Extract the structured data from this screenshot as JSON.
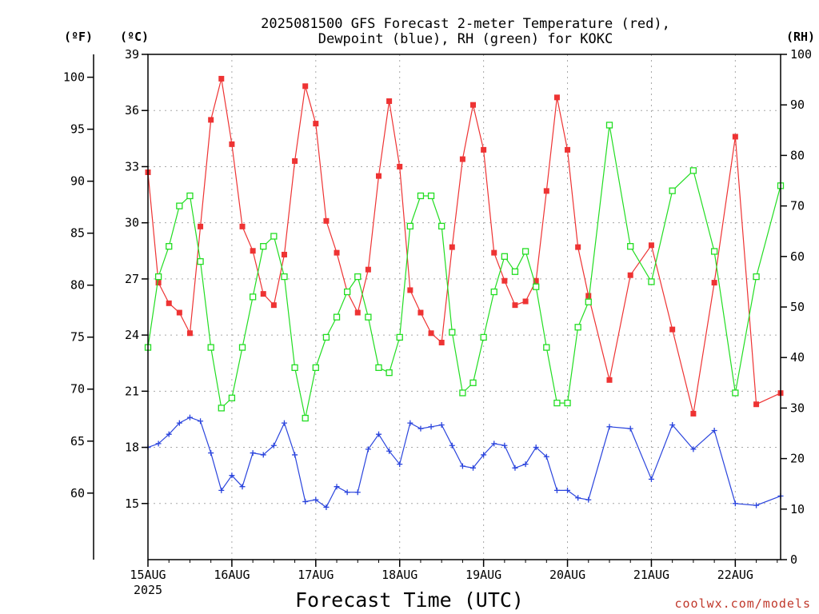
{
  "chart_data": {
    "type": "line",
    "title": [
      "2025081500 GFS Forecast 2-meter Temperature (red),",
      "Dewpoint (blue), RH (green) for KOKC"
    ],
    "xlabel": "Forecast Time (UTC)",
    "credit": "coolwx.com/models",
    "axes": {
      "fahrenheit": {
        "unit_label": "(ºF)",
        "ticks": [
          60,
          65,
          70,
          75,
          80,
          85,
          90,
          95,
          100
        ]
      },
      "celsius": {
        "unit_label": "(ºC)",
        "range": [
          12,
          39
        ],
        "ticks": [
          15,
          18,
          21,
          24,
          27,
          30,
          33,
          36,
          39
        ]
      },
      "rh": {
        "unit_label": "(RH)",
        "range": [
          0,
          100
        ],
        "ticks": [
          0,
          10,
          20,
          30,
          40,
          50,
          60,
          70,
          80,
          90,
          100
        ]
      },
      "time": {
        "range_days": [
          15,
          22.54
        ],
        "ticks": [
          {
            "day": 15,
            "label": "15AUG",
            "sublabel": "2025"
          },
          {
            "day": 16,
            "label": "16AUG"
          },
          {
            "day": 17,
            "label": "17AUG"
          },
          {
            "day": 18,
            "label": "18AUG"
          },
          {
            "day": 19,
            "label": "19AUG"
          },
          {
            "day": 20,
            "label": "20AUG"
          },
          {
            "day": 21,
            "label": "21AUG"
          },
          {
            "day": 22,
            "label": "22AUG"
          }
        ]
      }
    },
    "grid": true,
    "series": [
      {
        "name": "Temperature (°C)",
        "axis": "celsius",
        "color": "#ee3333",
        "marker": "filled-square",
        "x": [
          15.0,
          15.125,
          15.25,
          15.375,
          15.5,
          15.625,
          15.75,
          15.875,
          16.0,
          16.125,
          16.25,
          16.375,
          16.5,
          16.625,
          16.75,
          16.875,
          17.0,
          17.125,
          17.25,
          17.375,
          17.5,
          17.625,
          17.75,
          17.875,
          18.0,
          18.125,
          18.25,
          18.375,
          18.5,
          18.625,
          18.75,
          18.875,
          19.0,
          19.125,
          19.25,
          19.375,
          19.5,
          19.625,
          19.75,
          19.875,
          20.0,
          20.125,
          20.25,
          20.5,
          20.75,
          21.0,
          21.25,
          21.5,
          21.75,
          22.0,
          22.25,
          22.54
        ],
        "y": [
          32.7,
          26.8,
          25.7,
          25.2,
          24.1,
          29.8,
          35.5,
          37.7,
          34.2,
          29.8,
          28.5,
          26.2,
          25.6,
          28.3,
          33.3,
          37.3,
          35.3,
          30.1,
          28.4,
          26.3,
          25.2,
          27.5,
          32.5,
          36.5,
          33.0,
          26.4,
          25.2,
          24.1,
          23.6,
          28.7,
          33.4,
          36.3,
          33.9,
          28.4,
          26.9,
          25.6,
          25.8,
          26.9,
          31.7,
          36.7,
          33.9,
          28.7,
          26.1,
          21.6,
          27.2,
          28.8,
          24.3,
          19.8,
          26.8,
          34.6,
          20.3,
          20.9
        ]
      },
      {
        "name": "Dewpoint (°C)",
        "axis": "celsius",
        "color": "#2a44dd",
        "marker": "plus",
        "x": [
          15.0,
          15.125,
          15.25,
          15.375,
          15.5,
          15.625,
          15.75,
          15.875,
          16.0,
          16.125,
          16.25,
          16.375,
          16.5,
          16.625,
          16.75,
          16.875,
          17.0,
          17.125,
          17.25,
          17.375,
          17.5,
          17.625,
          17.75,
          17.875,
          18.0,
          18.125,
          18.25,
          18.375,
          18.5,
          18.625,
          18.75,
          18.875,
          19.0,
          19.125,
          19.25,
          19.375,
          19.5,
          19.625,
          19.75,
          19.875,
          20.0,
          20.125,
          20.25,
          20.5,
          20.75,
          21.0,
          21.25,
          21.5,
          21.75,
          22.0,
          22.25,
          22.54
        ],
        "y": [
          18.0,
          18.2,
          18.7,
          19.3,
          19.6,
          19.4,
          17.7,
          15.7,
          16.5,
          15.9,
          17.7,
          17.6,
          18.1,
          19.3,
          17.6,
          15.1,
          15.2,
          14.8,
          15.9,
          15.6,
          15.6,
          17.9,
          18.7,
          17.8,
          17.1,
          19.3,
          19.0,
          19.1,
          19.2,
          18.1,
          17.0,
          16.9,
          17.6,
          18.2,
          18.1,
          16.9,
          17.1,
          18.0,
          17.5,
          15.7,
          15.7,
          15.3,
          15.2,
          19.1,
          19.0,
          16.3,
          19.2,
          17.9,
          18.9,
          15.0,
          14.9,
          15.4
        ]
      },
      {
        "name": "RH (%)",
        "axis": "rh",
        "color": "#22dd22",
        "marker": "open-square",
        "x": [
          15.0,
          15.125,
          15.25,
          15.375,
          15.5,
          15.625,
          15.75,
          15.875,
          16.0,
          16.125,
          16.25,
          16.375,
          16.5,
          16.625,
          16.75,
          16.875,
          17.0,
          17.125,
          17.25,
          17.375,
          17.5,
          17.625,
          17.75,
          17.875,
          18.0,
          18.125,
          18.25,
          18.375,
          18.5,
          18.625,
          18.75,
          18.875,
          19.0,
          19.125,
          19.25,
          19.375,
          19.5,
          19.625,
          19.75,
          19.875,
          20.0,
          20.125,
          20.25,
          20.5,
          20.75,
          21.0,
          21.25,
          21.5,
          21.75,
          22.0,
          22.25,
          22.54
        ],
        "y": [
          42,
          56,
          62,
          70,
          72,
          59,
          42,
          30,
          32,
          42,
          52,
          62,
          64,
          56,
          38,
          28,
          38,
          44,
          48,
          53,
          56,
          48,
          38,
          37,
          44,
          66,
          72,
          72,
          66,
          45,
          33,
          35,
          44,
          53,
          60,
          57,
          61,
          54,
          42,
          31,
          31,
          46,
          51,
          86,
          62,
          55,
          73,
          77,
          61,
          33,
          56,
          74
        ]
      }
    ]
  }
}
